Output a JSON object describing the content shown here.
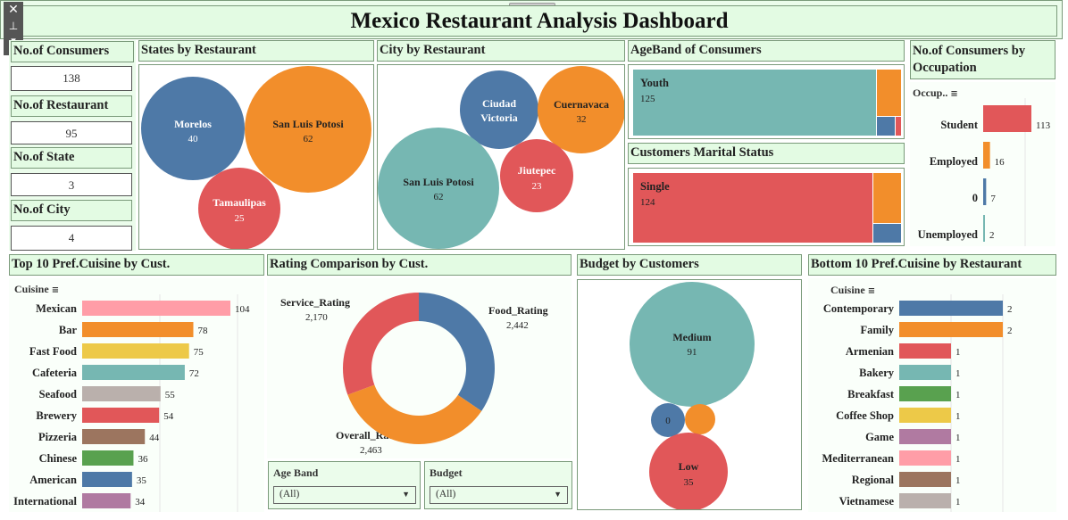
{
  "title": "Mexico Restaurant Analysis Dashboard",
  "toolbar": {
    "close": "✕",
    "pin": "⊥",
    "menu": "▾"
  },
  "kpis": [
    {
      "label": "No.of Consumers",
      "value": "138"
    },
    {
      "label": "No.of Restaurant",
      "value": "95"
    },
    {
      "label": "No.of State",
      "value": "3"
    },
    {
      "label": "No.of City",
      "value": "4"
    }
  ],
  "states": {
    "title": "States by Restaurant",
    "bubbles": [
      {
        "name": "Morelos",
        "value": "40",
        "color": "#4e79a7"
      },
      {
        "name": "San Luis Potosi",
        "value": "62",
        "color": "#f28e2b"
      },
      {
        "name": "Tamaulipas",
        "value": "25",
        "color": "#e15759"
      }
    ]
  },
  "cities": {
    "title": "City by Restaurant",
    "bubbles": [
      {
        "name": "Ciudad",
        "name2": "Victoria",
        "value": "",
        "color": "#4e79a7"
      },
      {
        "name": "Cuernavaca",
        "value": "32",
        "color": "#f28e2b"
      },
      {
        "name": "San Luis Potosi",
        "value": "62",
        "color": "#76b7b2"
      },
      {
        "name": "Jiutepec",
        "value": "23",
        "color": "#e15759"
      }
    ]
  },
  "ageband": {
    "title": "AgeBand of Consumers",
    "label": "Youth",
    "value": "125"
  },
  "marital": {
    "title": "Customers Marital Status",
    "label": "Single",
    "value": "124"
  },
  "occupation": {
    "title_line1": "No.of Consumers by",
    "title_line2": "Occupation",
    "filter_label": "Occup..",
    "chart_data": {
      "type": "bar",
      "categories": [
        "Student",
        "Employed",
        "0",
        "Unemployed"
      ],
      "values": [
        113,
        16,
        7,
        2
      ],
      "colors": [
        "#e15759",
        "#f28e2b",
        "#4e79a7",
        "#76b7b2"
      ]
    }
  },
  "top_cuisine": {
    "title": "Top 10 Pref.Cuisine by Cust.",
    "filter_label": "Cuisine",
    "chart_data": {
      "type": "bar",
      "categories": [
        "Mexican",
        "Bar",
        "Fast Food",
        "Cafeteria",
        "Seafood",
        "Brewery",
        "Pizzeria",
        "Chinese",
        "American",
        "International"
      ],
      "values": [
        104,
        78,
        75,
        72,
        55,
        54,
        44,
        36,
        35,
        34
      ],
      "colors": [
        "#ff9da7",
        "#f28e2b",
        "#edc948",
        "#76b7b2",
        "#bab0ac",
        "#e15759",
        "#9c755f",
        "#59a14f",
        "#4e79a7",
        "#b07aa1"
      ]
    }
  },
  "rating": {
    "title": "Rating Comparison by Cust.",
    "chart_data": {
      "type": "pie",
      "categories": [
        "Food_Rating",
        "Overall_Rating",
        "Service_Rating"
      ],
      "values": [
        2442,
        2463,
        2170
      ],
      "labels": [
        "2,442",
        "2,463",
        "2,170"
      ],
      "colors": [
        "#4e79a7",
        "#f28e2b",
        "#e15759"
      ]
    }
  },
  "budget": {
    "title": "Budget by Customers",
    "bubbles": [
      {
        "name": "Medium",
        "value": "91",
        "color": "#76b7b2"
      },
      {
        "name": "",
        "value": "0",
        "color": "#4e79a7"
      },
      {
        "name": "",
        "value": "",
        "color": "#f28e2b"
      },
      {
        "name": "Low",
        "value": "35",
        "color": "#e15759"
      }
    ]
  },
  "bottom_cuisine": {
    "title": "Bottom 10 Pref.Cuisine by Restaurant",
    "filter_label": "Cuisine",
    "chart_data": {
      "type": "bar",
      "categories": [
        "Contemporary",
        "Family",
        "Armenian",
        "Bakery",
        "Breakfast",
        "Coffee Shop",
        "Game",
        "Mediterranean",
        "Regional",
        "Vietnamese"
      ],
      "values": [
        2,
        2,
        1,
        1,
        1,
        1,
        1,
        1,
        1,
        1
      ],
      "colors": [
        "#4e79a7",
        "#f28e2b",
        "#e15759",
        "#76b7b2",
        "#59a14f",
        "#edc948",
        "#b07aa1",
        "#ff9da7",
        "#9c755f",
        "#bab0ac"
      ]
    }
  },
  "filters": {
    "age_band": {
      "label": "Age Band",
      "value": "(All)"
    },
    "budget": {
      "label": "Budget",
      "value": "(All)"
    }
  }
}
